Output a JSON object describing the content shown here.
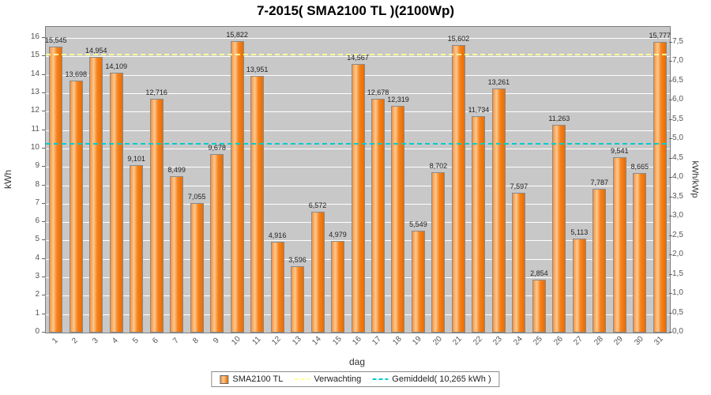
{
  "chart_data": {
    "type": "bar",
    "title": "7-2015( SMA2100 TL )(2100Wp)",
    "xlabel": "dag",
    "ylabel_left": "kWh",
    "ylabel_right": "kWh/kWp",
    "ylim_left": [
      0,
      16
    ],
    "ylim_right": [
      0.0,
      7.5
    ],
    "grid": "horizontal-white",
    "legend_position": "bottom",
    "series_name": "SMA2100 TL",
    "categories": [
      "1",
      "2",
      "3",
      "4",
      "5",
      "6",
      "7",
      "8",
      "9",
      "10",
      "11",
      "12",
      "13",
      "14",
      "15",
      "16",
      "17",
      "18",
      "19",
      "20",
      "21",
      "22",
      "23",
      "24",
      "25",
      "26",
      "27",
      "28",
      "29",
      "30",
      "31"
    ],
    "values": [
      15.545,
      13.698,
      14.954,
      14.109,
      9.101,
      12.716,
      8.499,
      7.055,
      9.678,
      15.822,
      13.951,
      4.916,
      3.596,
      6.572,
      4.979,
      14.567,
      12.678,
      12.319,
      5.549,
      8.702,
      15.602,
      11.734,
      13.261,
      7.597,
      2.854,
      11.263,
      5.113,
      7.787,
      9.541,
      8.665,
      15.777
    ],
    "value_labels": [
      "15,545",
      "13,698",
      "14,954",
      "14,109",
      "9,101",
      "12,716",
      "8,499",
      "7,055",
      "9,678",
      "15,822",
      "13,951",
      "4,916",
      "3,596",
      "6,572",
      "4,979",
      "14,567",
      "12,678",
      "12,319",
      "5,549",
      "8,702",
      "15,602",
      "11,734",
      "13,261",
      "7,597",
      "2,854",
      "11,263",
      "5,113",
      "7,787",
      "9,541",
      "8,665",
      "15,777"
    ],
    "left_ticks": [
      "0",
      "1",
      "2",
      "3",
      "4",
      "5",
      "6",
      "7",
      "8",
      "9",
      "10",
      "11",
      "12",
      "13",
      "14",
      "15",
      "16"
    ],
    "right_ticks": [
      "0,0",
      "0,5",
      "1,0",
      "1,5",
      "2,0",
      "2,5",
      "3,0",
      "3,5",
      "4,0",
      "4,5",
      "5,0",
      "5,5",
      "6,0",
      "6,5",
      "7,0",
      "7,5"
    ],
    "wp": 2100,
    "reference_lines": [
      {
        "name": "Verwachting",
        "value_kwh": 15.12,
        "color": "#ffff99"
      },
      {
        "name": "Gemiddeld",
        "value_kwh": 10.265,
        "color": "#00cccc"
      }
    ],
    "bar_color": "#f58220",
    "plot_background": "#c8c8c8"
  },
  "legend": {
    "items": [
      {
        "label": "SMA2100 TL",
        "swatch": "bar",
        "color": "#f58220"
      },
      {
        "label": "Verwachting",
        "swatch": "dashed-line",
        "color": "#ffff99"
      },
      {
        "label": "Gemiddeld( 10,265 kWh )",
        "swatch": "dashed-line",
        "color": "#00cccc"
      }
    ]
  }
}
